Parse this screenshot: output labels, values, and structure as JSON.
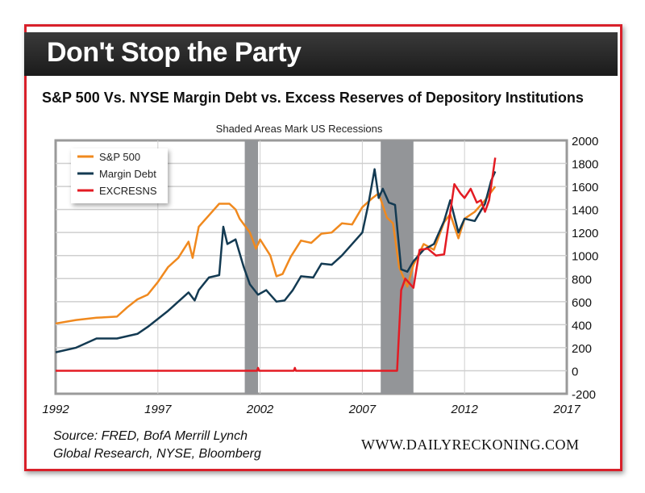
{
  "header": {
    "title": "Don't Stop the Party",
    "subtitle": "S&P 500 Vs. NYSE Margin Debt vs. Excess Reserves of Depository Institutions"
  },
  "footer": {
    "source_line1": "Source: FRED, BofA Merrill Lynch",
    "source_line2": "Global Research, NYSE, Bloomberg",
    "website": "WWW.DAILYRECKONING.COM"
  },
  "chart_data": {
    "type": "line",
    "title": "Shaded Areas Mark US Recessions",
    "xlim": [
      1992,
      2017
    ],
    "ylim": [
      -200,
      2000
    ],
    "x_ticks": [
      "1992",
      "1997",
      "2002",
      "2007",
      "2012",
      "2017"
    ],
    "y_ticks": [
      "2000",
      "1800",
      "1600",
      "1400",
      "1200",
      "1000",
      "800",
      "600",
      "400",
      "200",
      "0",
      "-200"
    ],
    "recessions": [
      [
        2001.25,
        2001.9
      ],
      [
        2007.9,
        2009.5
      ]
    ],
    "legend_position": "top-left",
    "colors": {
      "S&P 500": "#f0891e",
      "Margin Debt": "#133a52",
      "EXCRESNS": "#e31b23"
    },
    "series": [
      {
        "name": "S&P 500",
        "x": [
          1992,
          1993,
          1994,
          1995,
          1995.5,
          1996,
          1996.5,
          1997,
          1997.5,
          1998,
          1998.5,
          1998.7,
          1999,
          1999.5,
          2000,
          2000.5,
          2000.8,
          2001,
          2001.5,
          2001.8,
          2002,
          2002.5,
          2002.8,
          2003.1,
          2003.5,
          2004,
          2004.5,
          2005,
          2005.5,
          2006,
          2006.5,
          2007,
          2007.5,
          2007.8,
          2008.2,
          2008.5,
          2008.8,
          2009.2,
          2009.5,
          2010,
          2010.5,
          2011,
          2011.3,
          2011.7,
          2012,
          2012.5,
          2013,
          2013.5
        ],
        "values": [
          410,
          440,
          460,
          470,
          550,
          620,
          660,
          770,
          900,
          980,
          1120,
          980,
          1250,
          1350,
          1450,
          1450,
          1400,
          1320,
          1200,
          1060,
          1140,
          1000,
          820,
          840,
          990,
          1130,
          1110,
          1190,
          1200,
          1280,
          1270,
          1420,
          1500,
          1540,
          1330,
          1280,
          900,
          730,
          920,
          1100,
          1050,
          1290,
          1360,
          1150,
          1320,
          1380,
          1480,
          1600
        ]
      },
      {
        "name": "Margin Debt",
        "x": [
          1992,
          1993,
          1994,
          1995,
          1996,
          1996.5,
          1997,
          1997.5,
          1998,
          1998.5,
          1998.8,
          1999,
          1999.5,
          2000,
          2000.2,
          2000.4,
          2000.8,
          2001.2,
          2001.5,
          2001.9,
          2002.3,
          2002.8,
          2003.2,
          2003.6,
          2004,
          2004.6,
          2005,
          2005.5,
          2006,
          2006.5,
          2007,
          2007.3,
          2007.6,
          2007.8,
          2008,
          2008.3,
          2008.6,
          2008.9,
          2009.2,
          2009.5,
          2010,
          2010.5,
          2011,
          2011.3,
          2011.7,
          2012,
          2012.5,
          2013,
          2013.3,
          2013.5
        ],
        "values": [
          160,
          200,
          280,
          280,
          320,
          380,
          450,
          520,
          600,
          680,
          610,
          700,
          810,
          830,
          1250,
          1100,
          1140,
          900,
          750,
          660,
          700,
          600,
          610,
          700,
          820,
          810,
          930,
          920,
          1000,
          1100,
          1200,
          1450,
          1750,
          1500,
          1580,
          1460,
          1440,
          880,
          860,
          950,
          1050,
          1100,
          1300,
          1480,
          1200,
          1320,
          1300,
          1450,
          1650,
          1730
        ]
      },
      {
        "name": "EXCRESNS",
        "x": [
          1992,
          2001.85,
          2001.9,
          2001.95,
          2003.65,
          2003.7,
          2003.75,
          2008.7,
          2008.9,
          2009.1,
          2009.5,
          2009.8,
          2010.2,
          2010.6,
          2011,
          2011.5,
          2011.8,
          2012,
          2012.3,
          2012.6,
          2012.8,
          2013,
          2013.2,
          2013.5
        ],
        "values": [
          0,
          0,
          25,
          0,
          0,
          25,
          0,
          0,
          700,
          800,
          720,
          1050,
          1060,
          1000,
          1010,
          1620,
          1540,
          1500,
          1580,
          1460,
          1480,
          1380,
          1480,
          1850
        ]
      }
    ]
  }
}
